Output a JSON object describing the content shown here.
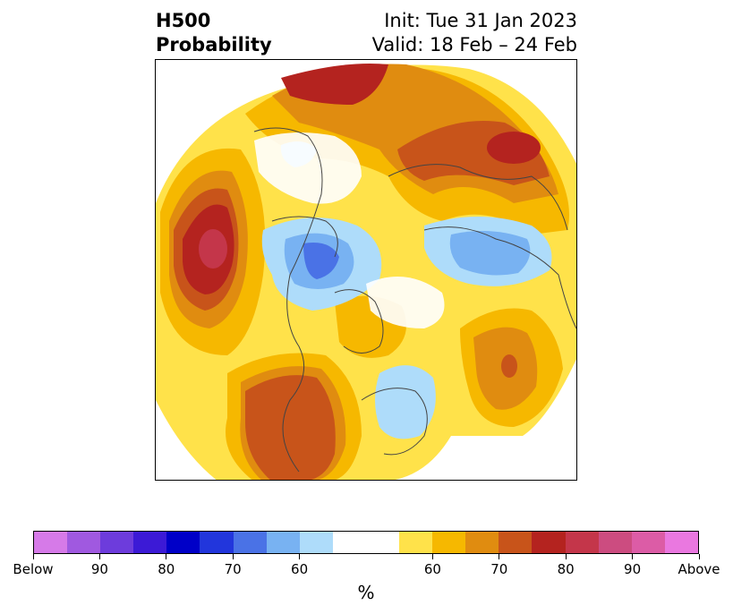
{
  "header": {
    "title_line1": "H500",
    "title_line2": "Probability",
    "init": "Init: Tue 31 Jan 2023",
    "valid": "Valid: 18 Feb – 24 Feb"
  },
  "colorbar": {
    "colors": [
      "#d67ae8",
      "#a059e0",
      "#6d3cdc",
      "#3c1ad6",
      "#0000c8",
      "#2236dc",
      "#4a72e6",
      "#78b2f2",
      "#aedcfa",
      "#ffffff",
      "#ffe24a",
      "#f6b800",
      "#e08c10",
      "#c8541a",
      "#b4231f",
      "#c4364a",
      "#cc4c80",
      "#dc5ca6",
      "#ea78e0"
    ],
    "labels": [
      "Below",
      "90",
      "80",
      "70",
      "60",
      "60",
      "70",
      "80",
      "90",
      "Above"
    ],
    "unit": "%"
  },
  "map": {
    "layers": [
      "land-outlines",
      "probability-contours"
    ]
  }
}
